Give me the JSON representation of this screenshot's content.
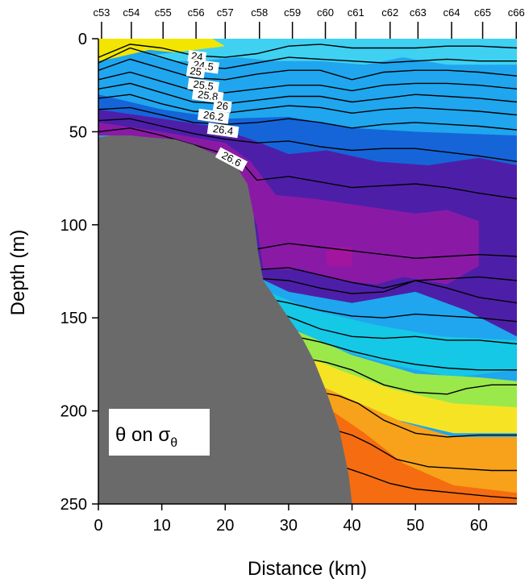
{
  "chart_data": {
    "type": "heatmap",
    "title": "",
    "xlabel": "Distance (km)",
    "ylabel": "Depth (m)",
    "xlim": [
      0,
      66
    ],
    "ylim": [
      250,
      0
    ],
    "x_ticks": [
      0,
      10,
      20,
      30,
      40,
      50,
      60
    ],
    "y_ticks": [
      0,
      50,
      100,
      150,
      200,
      250
    ],
    "stations": [
      {
        "name": "c53",
        "x": 0.5
      },
      {
        "name": "c54",
        "x": 5.2
      },
      {
        "name": "c55",
        "x": 10.2
      },
      {
        "name": "c56",
        "x": 15.4
      },
      {
        "name": "c57",
        "x": 20.0
      },
      {
        "name": "c58",
        "x": 25.4
      },
      {
        "name": "c59",
        "x": 30.6
      },
      {
        "name": "c60",
        "x": 35.8
      },
      {
        "name": "c61",
        "x": 40.6
      },
      {
        "name": "c62",
        "x": 46.0
      },
      {
        "name": "c63",
        "x": 50.4
      },
      {
        "name": "c64",
        "x": 55.7
      },
      {
        "name": "c65",
        "x": 60.6
      },
      {
        "name": "c66",
        "x": 65.9
      }
    ],
    "annotation": {
      "text": "θ on σ",
      "subscript": "θ"
    },
    "bathymetry": {
      "distance_km": [
        0,
        2,
        5,
        8,
        12,
        15,
        17,
        20,
        22,
        23.5,
        24.5,
        25.2,
        26,
        28,
        30,
        32,
        34,
        36,
        38,
        39.5,
        40
      ],
      "depth_m": [
        53,
        52,
        52,
        53,
        54,
        57,
        60,
        64,
        70,
        78,
        95,
        115,
        130,
        140,
        150,
        160,
        173,
        190,
        210,
        235,
        250
      ]
    },
    "contours": [
      {
        "level": "24",
        "label": "24",
        "points": [
          [
            0,
            10
          ],
          [
            5,
            3
          ],
          [
            10,
            5
          ],
          [
            15,
            9
          ],
          [
            20,
            10
          ],
          [
            25,
            8
          ],
          [
            30,
            4
          ],
          [
            35,
            3
          ],
          [
            40,
            5
          ],
          [
            45,
            5
          ],
          [
            50,
            5
          ],
          [
            55,
            4
          ],
          [
            60,
            4
          ],
          [
            66,
            5
          ]
        ]
      },
      {
        "level": "24.5",
        "label": "24.5",
        "points": [
          [
            0,
            13
          ],
          [
            5,
            5
          ],
          [
            10,
            10
          ],
          [
            15,
            15
          ],
          [
            20,
            16
          ],
          [
            25,
            13
          ],
          [
            30,
            10
          ],
          [
            35,
            11
          ],
          [
            40,
            12
          ],
          [
            45,
            13
          ],
          [
            50,
            12
          ],
          [
            55,
            11
          ],
          [
            60,
            12
          ],
          [
            66,
            12
          ]
        ]
      },
      {
        "level": "25",
        "label": "25",
        "points": [
          [
            0,
            17
          ],
          [
            5,
            11
          ],
          [
            10,
            16
          ],
          [
            15,
            21
          ],
          [
            20,
            22
          ],
          [
            25,
            19
          ],
          [
            30,
            17
          ],
          [
            35,
            17
          ],
          [
            40,
            22
          ],
          [
            45,
            18
          ],
          [
            50,
            17
          ],
          [
            55,
            17
          ],
          [
            60,
            18
          ],
          [
            66,
            20
          ]
        ]
      },
      {
        "level": "25.5",
        "label": "25.5",
        "points": [
          [
            0,
            22
          ],
          [
            5,
            18
          ],
          [
            10,
            23
          ],
          [
            15,
            28
          ],
          [
            20,
            29
          ],
          [
            25,
            27
          ],
          [
            30,
            25
          ],
          [
            35,
            25
          ],
          [
            40,
            28
          ],
          [
            45,
            25
          ],
          [
            50,
            24
          ],
          [
            55,
            24
          ],
          [
            60,
            25
          ],
          [
            66,
            27
          ]
        ]
      },
      {
        "level": "25.8",
        "label": "25.8",
        "points": [
          [
            0,
            27
          ],
          [
            5,
            24
          ],
          [
            10,
            29
          ],
          [
            15,
            34
          ],
          [
            20,
            35
          ],
          [
            25,
            33
          ],
          [
            30,
            31
          ],
          [
            35,
            31
          ],
          [
            40,
            34
          ],
          [
            45,
            32
          ],
          [
            50,
            30
          ],
          [
            55,
            31
          ],
          [
            60,
            32
          ],
          [
            66,
            34
          ]
        ]
      },
      {
        "level": "26",
        "label": "26",
        "points": [
          [
            0,
            32
          ],
          [
            5,
            30
          ],
          [
            10,
            35
          ],
          [
            15,
            39
          ],
          [
            20,
            40
          ],
          [
            25,
            38
          ],
          [
            30,
            36
          ],
          [
            35,
            37
          ],
          [
            40,
            40
          ],
          [
            45,
            38
          ],
          [
            50,
            37
          ],
          [
            55,
            38
          ],
          [
            60,
            39
          ],
          [
            66,
            41
          ]
        ]
      },
      {
        "level": "26.2",
        "label": "26.2",
        "points": [
          [
            0,
            38
          ],
          [
            5,
            37
          ],
          [
            10,
            41
          ],
          [
            15,
            45
          ],
          [
            20,
            46
          ],
          [
            25,
            45
          ],
          [
            30,
            43
          ],
          [
            35,
            45
          ],
          [
            40,
            48
          ],
          [
            45,
            46
          ],
          [
            50,
            45
          ],
          [
            55,
            46
          ],
          [
            60,
            47
          ],
          [
            66,
            49
          ]
        ]
      },
      {
        "level": "26.4",
        "label": "26.4",
        "points": [
          [
            0,
            44
          ],
          [
            5,
            43
          ],
          [
            10,
            47
          ],
          [
            15,
            51
          ],
          [
            20,
            54
          ],
          [
            25,
            56
          ],
          [
            30,
            55
          ],
          [
            35,
            58
          ],
          [
            40,
            60
          ],
          [
            45,
            59
          ],
          [
            50,
            59
          ],
          [
            55,
            61
          ],
          [
            60,
            63
          ],
          [
            66,
            66
          ]
        ]
      },
      {
        "level": "26.6",
        "label": "26.6",
        "points": [
          [
            0,
            50
          ],
          [
            5,
            48
          ],
          [
            10,
            52
          ],
          [
            15,
            57
          ],
          [
            20,
            62
          ],
          [
            23,
            68
          ],
          [
            25,
            76
          ],
          [
            30,
            74
          ],
          [
            35,
            77
          ],
          [
            40,
            80
          ],
          [
            45,
            79
          ],
          [
            50,
            78
          ],
          [
            55,
            80
          ],
          [
            60,
            83
          ],
          [
            66,
            86
          ]
        ]
      },
      {
        "level": "26.7",
        "label": "",
        "points": [
          [
            25,
            113
          ],
          [
            30,
            110
          ],
          [
            35,
            112
          ],
          [
            40,
            114
          ],
          [
            45,
            116
          ],
          [
            50,
            118
          ],
          [
            55,
            117
          ],
          [
            60,
            116
          ],
          [
            66,
            117
          ]
        ]
      },
      {
        "level": "26.75",
        "label": "",
        "points": [
          [
            25.5,
            124
          ],
          [
            30,
            123
          ],
          [
            35,
            127
          ],
          [
            40,
            131
          ],
          [
            45,
            134
          ],
          [
            50,
            130
          ],
          [
            55,
            129
          ],
          [
            60,
            128
          ],
          [
            66,
            130
          ]
        ]
      },
      {
        "level": "26.8",
        "label": "",
        "points": [
          [
            26,
            129
          ],
          [
            30,
            130
          ],
          [
            35,
            134
          ],
          [
            40,
            137
          ],
          [
            45,
            136
          ],
          [
            50,
            130
          ],
          [
            55,
            134
          ],
          [
            60,
            139
          ],
          [
            66,
            142
          ]
        ]
      },
      {
        "level": "26.85",
        "label": "",
        "points": [
          [
            27,
            140
          ],
          [
            30,
            142
          ],
          [
            35,
            146
          ],
          [
            40,
            149
          ],
          [
            45,
            150
          ],
          [
            50,
            148
          ],
          [
            55,
            149
          ],
          [
            60,
            150
          ],
          [
            66,
            152
          ]
        ]
      },
      {
        "level": "26.9",
        "label": "",
        "points": [
          [
            29,
            148
          ],
          [
            32,
            152
          ],
          [
            35,
            156
          ],
          [
            40,
            160
          ],
          [
            45,
            161
          ],
          [
            50,
            160
          ],
          [
            55,
            162
          ],
          [
            60,
            162
          ],
          [
            66,
            164
          ]
        ]
      },
      {
        "level": "26.95",
        "label": "",
        "points": [
          [
            31,
            160
          ],
          [
            35,
            163
          ],
          [
            40,
            168
          ],
          [
            45,
            172
          ],
          [
            50,
            175
          ],
          [
            55,
            177
          ],
          [
            60,
            178
          ],
          [
            66,
            178
          ]
        ]
      },
      {
        "level": "27",
        "label": "",
        "points": [
          [
            33,
            172
          ],
          [
            36,
            174
          ],
          [
            40,
            178
          ],
          [
            45,
            186
          ],
          [
            50,
            190
          ],
          [
            55,
            191
          ],
          [
            58,
            188
          ],
          [
            62,
            186
          ],
          [
            66,
            186
          ]
        ]
      },
      {
        "level": "27.05",
        "label": "",
        "points": [
          [
            35,
            190
          ],
          [
            38,
            192
          ],
          [
            41,
            196
          ],
          [
            45,
            205
          ],
          [
            50,
            212
          ],
          [
            55,
            214
          ],
          [
            60,
            213
          ],
          [
            66,
            213
          ]
        ]
      },
      {
        "level": "27.1",
        "label": "",
        "points": [
          [
            37,
            210
          ],
          [
            40,
            213
          ],
          [
            43,
            218
          ],
          [
            47,
            226
          ],
          [
            52,
            230
          ],
          [
            57,
            231
          ],
          [
            62,
            232
          ],
          [
            66,
            232
          ]
        ]
      },
      {
        "level": "27.15",
        "label": "",
        "points": [
          [
            38.5,
            230
          ],
          [
            42,
            234
          ],
          [
            46,
            239
          ],
          [
            50,
            242
          ],
          [
            56,
            244
          ],
          [
            62,
            246
          ],
          [
            66,
            247
          ]
        ]
      }
    ],
    "color_layers": [
      {
        "name": "warm-surface",
        "color": "#f2e600"
      },
      {
        "name": "light-blue",
        "color": "#3fd1f2"
      },
      {
        "name": "blue",
        "color": "#1fa6ee"
      },
      {
        "name": "deep-blue",
        "color": "#1565d9"
      },
      {
        "name": "indigo",
        "color": "#4d1fa8"
      },
      {
        "name": "purple",
        "color": "#8a1aa6"
      },
      {
        "name": "magenta",
        "color": "#a3159e"
      },
      {
        "name": "cyan",
        "color": "#15c8e6"
      },
      {
        "name": "green",
        "color": "#9be84a"
      },
      {
        "name": "yellow",
        "color": "#f6e424"
      },
      {
        "name": "orange",
        "color": "#f7a21a"
      },
      {
        "name": "red-orange",
        "color": "#f56d10"
      }
    ],
    "bathymetry_color": "#6a6a6a",
    "grid": false
  }
}
